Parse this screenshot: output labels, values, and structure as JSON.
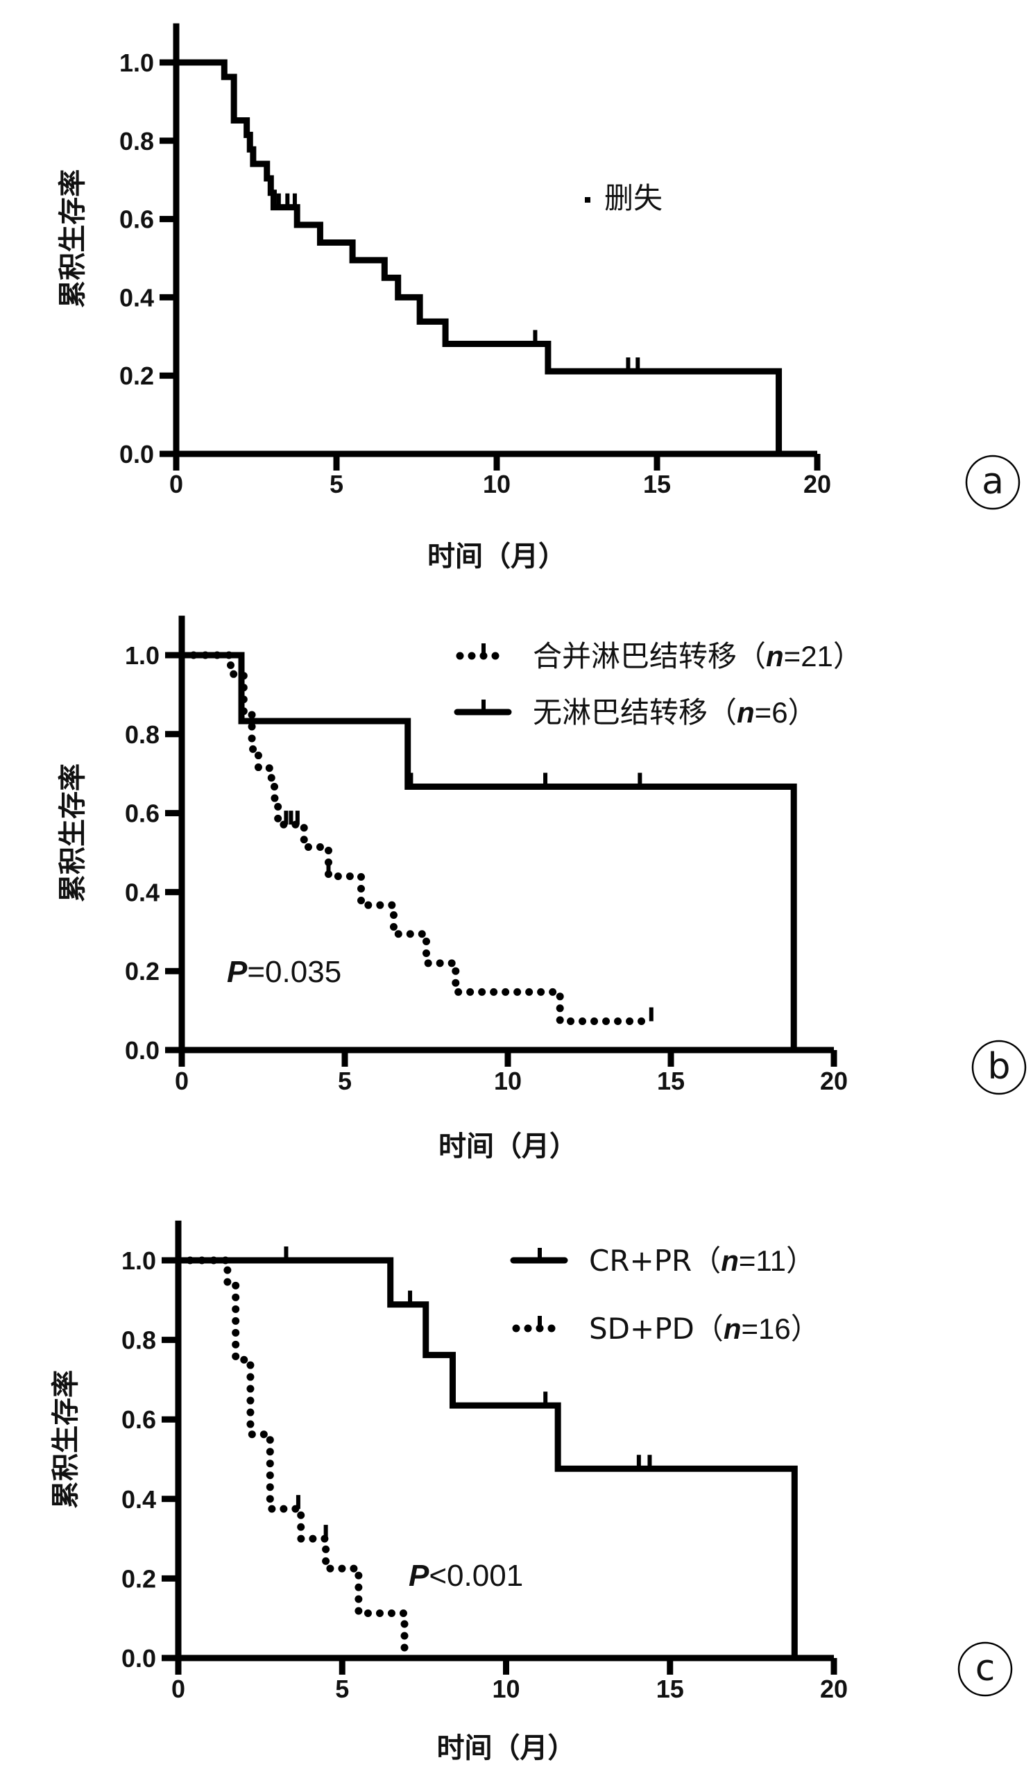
{
  "chart_data": [
    {
      "type": "line",
      "subtype": "kaplan-meier step",
      "panel_label": "a",
      "xlabel": "时间（月）",
      "ylabel": "累积生存率",
      "xlim": [
        0,
        20
      ],
      "ylim": [
        0,
        1.1
      ],
      "xticks": [
        "0",
        "5",
        "10",
        "15",
        "20"
      ],
      "yticks": [
        "0.0",
        "0.2",
        "0.4",
        "0.6",
        "0.8",
        "1.0"
      ],
      "grid": false,
      "legend": {
        "marker_label": "删失",
        "placement": "right"
      },
      "series": [
        {
          "style": "solid",
          "steps": [
            [
              0,
              1.0
            ],
            [
              1.5,
              0.963
            ],
            [
              1.8,
              0.852
            ],
            [
              2.2,
              0.815
            ],
            [
              2.3,
              0.778
            ],
            [
              2.4,
              0.741
            ],
            [
              2.83,
              0.704
            ],
            [
              2.95,
              0.667
            ],
            [
              3.04,
              0.63
            ],
            [
              3.77,
              0.585
            ],
            [
              4.49,
              0.54
            ],
            [
              5.5,
              0.495
            ],
            [
              6.5,
              0.45
            ],
            [
              6.92,
              0.4
            ],
            [
              7.6,
              0.338
            ],
            [
              8.4,
              0.281
            ],
            [
              11.6,
              0.211
            ],
            [
              18.8,
              0
            ]
          ],
          "censored": [
            [
              3.2,
              0.63
            ],
            [
              3.47,
              0.63
            ],
            [
              3.7,
              0.63
            ],
            [
              11.2,
              0.281
            ],
            [
              14.1,
              0.211
            ],
            [
              14.4,
              0.211
            ]
          ]
        }
      ]
    },
    {
      "type": "line",
      "subtype": "kaplan-meier step",
      "panel_label": "b",
      "xlabel": "时间（月）",
      "ylabel": "累积生存率",
      "xlim": [
        0,
        20
      ],
      "ylim": [
        0,
        1.1
      ],
      "xticks": [
        "0",
        "5",
        "10",
        "15",
        "20"
      ],
      "yticks": [
        "0.0",
        "0.2",
        "0.4",
        "0.6",
        "0.8",
        "1.0"
      ],
      "grid": false,
      "annotation": {
        "p_symbol": "P",
        "p_text": "=0.035"
      },
      "legend_placement": "top-right",
      "series": [
        {
          "name_prefix": "合并淋巴结转移（",
          "name_n": "n",
          "name_suffix": "=21）",
          "style": "dotted",
          "steps": [
            [
              0,
              1.0
            ],
            [
              1.5,
              0.952
            ],
            [
              1.9,
              0.857
            ],
            [
              2.15,
              0.762
            ],
            [
              2.35,
              0.714
            ],
            [
              2.75,
              0.667
            ],
            [
              2.85,
              0.619
            ],
            [
              2.95,
              0.571
            ],
            [
              3.75,
              0.514
            ],
            [
              4.5,
              0.44
            ],
            [
              5.5,
              0.367
            ],
            [
              6.5,
              0.294
            ],
            [
              7.5,
              0.22
            ],
            [
              8.4,
              0.147
            ],
            [
              11.6,
              0.073
            ]
          ],
          "end_x": 14.4,
          "censored": [
            [
              3.2,
              0.571
            ],
            [
              3.35,
              0.571
            ],
            [
              3.55,
              0.571
            ],
            [
              4.5,
              0.44
            ],
            [
              14.4,
              0.073
            ]
          ]
        },
        {
          "name_prefix": "无淋巴结转移（",
          "name_n": "n",
          "name_suffix": "=6）",
          "style": "solid",
          "steps": [
            [
              0,
              1.0
            ],
            [
              1.83,
              0.833
            ],
            [
              6.93,
              0.667
            ],
            [
              18.77,
              0
            ]
          ],
          "censored": [
            [
              7.03,
              0.667
            ],
            [
              11.15,
              0.667
            ],
            [
              14.05,
              0.667
            ]
          ]
        }
      ]
    },
    {
      "type": "line",
      "subtype": "kaplan-meier step",
      "panel_label": "c",
      "xlabel": "时间（月）",
      "ylabel": "累积生存率",
      "xlim": [
        0,
        20
      ],
      "ylim": [
        0,
        1.1
      ],
      "xticks": [
        "0",
        "5",
        "10",
        "15",
        "20"
      ],
      "yticks": [
        "0.0",
        "0.2",
        "0.4",
        "0.6",
        "0.8",
        "1.0"
      ],
      "grid": false,
      "annotation": {
        "p_symbol": "P",
        "p_text": "<0.001"
      },
      "legend_placement": "top-right",
      "series": [
        {
          "name_prefix": "CR+PR（",
          "name_n": "n",
          "name_suffix": "=11）",
          "style": "solid",
          "steps": [
            [
              0,
              1.0
            ],
            [
              6.47,
              0.889
            ],
            [
              7.55,
              0.762
            ],
            [
              8.37,
              0.635
            ],
            [
              11.58,
              0.476
            ],
            [
              18.8,
              0
            ]
          ],
          "censored": [
            [
              3.29,
              1.0
            ],
            [
              7.07,
              0.889
            ],
            [
              11.2,
              0.635
            ],
            [
              14.05,
              0.476
            ],
            [
              14.38,
              0.476
            ]
          ]
        },
        {
          "name_prefix": "SD+PD（",
          "name_n": "n",
          "name_suffix": "=16）",
          "style": "dotted",
          "steps": [
            [
              0,
              1.0
            ],
            [
              1.5,
              0.9375
            ],
            [
              1.75,
              0.75
            ],
            [
              2.2,
              0.5625
            ],
            [
              2.8,
              0.375
            ],
            [
              3.74,
              0.3
            ],
            [
              4.5,
              0.225
            ],
            [
              5.5,
              0.1125
            ],
            [
              6.9,
              0
            ]
          ],
          "censored": [
            [
              3.66,
              0.375
            ],
            [
              4.5,
              0.3
            ]
          ]
        }
      ]
    }
  ]
}
